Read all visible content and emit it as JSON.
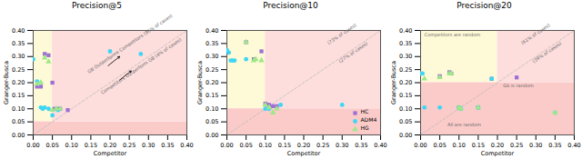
{
  "chart_data": [
    {
      "type": "scatter",
      "title": "Precision@5",
      "xlabel": "Competitor",
      "ylabel": "Granger-Busca",
      "xlim": [
        0.0,
        0.4
      ],
      "ylim": [
        0.0,
        0.4
      ],
      "xticks": [
        {
          "value": 0.0,
          "label": "0.00"
        },
        0.05,
        {
          "value": 0.1,
          "label": "0.10"
        },
        0.15,
        {
          "value": 0.2,
          "label": "0.20"
        },
        0.25,
        {
          "value": 0.3,
          "label": "0.30"
        },
        0.35,
        {
          "value": 0.4,
          "label": "0.40"
        }
      ],
      "yticks": [
        {
          "value": 0.0,
          "label": "0.00"
        },
        0.05,
        {
          "value": 0.1,
          "label": "0.10"
        },
        0.15,
        {
          "value": 0.2,
          "label": "0.20"
        },
        0.25,
        {
          "value": 0.3,
          "label": "0.30"
        },
        0.35,
        {
          "value": 0.4,
          "label": "0.40"
        }
      ],
      "grid": false,
      "threshold": 0.05,
      "region_colors": [
        "#FEF9D6",
        "#FBCBC9",
        "#FDDEDD"
      ],
      "diagonal_annotations": {
        "upper": {
          "text": "GB Outperforms Competitors (96% of cases)",
          "x": 0.145,
          "y": 0.235
        },
        "lower": {
          "text": "Competitors Outperform GB (4% of cases)",
          "x": 0.175,
          "y": 0.165
        }
      },
      "arrows": [
        {
          "x1": 0.195,
          "y1": 0.265,
          "x2": 0.225,
          "y2": 0.3
        },
        {
          "x1": 0.225,
          "y1": 0.21,
          "x2": 0.255,
          "y2": 0.245
        }
      ],
      "series": [
        {
          "name": "HC",
          "color": "#9B6FD4",
          "marker": "square",
          "values": [
            [
              0.01,
              0.185
            ],
            [
              0.02,
              0.185
            ],
            [
              0.03,
              0.31
            ],
            [
              0.04,
              0.305
            ],
            [
              0.05,
              0.2
            ],
            [
              0.055,
              0.1
            ],
            [
              0.065,
              0.1
            ],
            [
              0.07,
              0.1
            ],
            [
              0.09,
              0.095
            ]
          ]
        },
        {
          "name": "ADM4",
          "color": "#3DD6F5",
          "marker": "circle",
          "values": [
            [
              0.0,
              0.29
            ],
            [
              0.01,
              0.205
            ],
            [
              0.02,
              0.105
            ],
            [
              0.025,
              0.1
            ],
            [
              0.03,
              0.105
            ],
            [
              0.04,
              0.1
            ],
            [
              0.05,
              0.075
            ],
            [
              0.065,
              0.095
            ],
            [
              0.2,
              0.32
            ],
            [
              0.28,
              0.31
            ]
          ]
        },
        {
          "name": "HG",
          "color": "#9EE888",
          "marker": "triangle",
          "values": [
            [
              0.01,
              0.195
            ],
            [
              0.02,
              0.2
            ],
            [
              0.03,
              0.295
            ],
            [
              0.04,
              0.28
            ],
            [
              0.05,
              0.095
            ],
            [
              0.06,
              0.1
            ],
            [
              0.07,
              0.1
            ]
          ]
        }
      ]
    },
    {
      "type": "scatter",
      "title": "Precision@10",
      "xlabel": "Competitor",
      "ylabel": "Granger-Busca",
      "xlim": [
        0.0,
        0.4
      ],
      "ylim": [
        0.0,
        0.4
      ],
      "xticks": [
        {
          "value": 0.0,
          "label": "0.00"
        },
        0.05,
        {
          "value": 0.1,
          "label": "0.10"
        },
        0.15,
        {
          "value": 0.2,
          "label": "0.20"
        },
        0.25,
        {
          "value": 0.3,
          "label": "0.30"
        },
        0.35,
        {
          "value": 0.4,
          "label": "0.40"
        }
      ],
      "yticks": [
        {
          "value": 0.0,
          "label": "0.00"
        },
        0.05,
        {
          "value": 0.1,
          "label": "0.10"
        },
        0.15,
        {
          "value": 0.2,
          "label": "0.20"
        },
        0.25,
        {
          "value": 0.3,
          "label": "0.30"
        },
        0.35,
        {
          "value": 0.4,
          "label": "0.40"
        }
      ],
      "grid": false,
      "legend": "lower right",
      "threshold": 0.1,
      "region_colors": [
        "#FEF9D6",
        "#FBCBC9",
        "#FDDEDD"
      ],
      "diagonal_annotations": {
        "upper": {
          "text": "(73% of cases)",
          "x": 0.265,
          "y": 0.345
        },
        "lower": {
          "text": "(27% of cases)",
          "x": 0.29,
          "y": 0.285
        }
      },
      "series": [
        {
          "name": "HC",
          "color": "#9B6FD4",
          "marker": "square",
          "values": [
            [
              0.05,
              0.355
            ],
            [
              0.07,
              0.29
            ],
            [
              0.09,
              0.32
            ],
            [
              0.1,
              0.12
            ],
            [
              0.105,
              0.115
            ],
            [
              0.11,
              0.115
            ],
            [
              0.12,
              0.11
            ],
            [
              0.13,
              0.11
            ]
          ]
        },
        {
          "name": "ADM4",
          "color": "#3DD6F5",
          "marker": "circle",
          "values": [
            [
              0.0,
              0.325
            ],
            [
              0.005,
              0.315
            ],
            [
              0.01,
              0.285
            ],
            [
              0.015,
              0.285
            ],
            [
              0.02,
              0.285
            ],
            [
              0.05,
              0.29
            ],
            [
              0.1,
              0.1
            ],
            [
              0.11,
              0.1
            ],
            [
              0.14,
              0.115
            ],
            [
              0.3,
              0.115
            ]
          ]
        },
        {
          "name": "HG",
          "color": "#9EE888",
          "marker": "triangle",
          "values": [
            [
              0.05,
              0.355
            ],
            [
              0.07,
              0.285
            ],
            [
              0.075,
              0.29
            ],
            [
              0.09,
              0.285
            ],
            [
              0.1,
              0.115
            ],
            [
              0.11,
              0.105
            ],
            [
              0.12,
              0.085
            ],
            [
              0.13,
              0.1
            ]
          ]
        }
      ]
    },
    {
      "type": "scatter",
      "title": "Precision@20",
      "xlabel": "Competitor",
      "ylabel": "Granger-Busca",
      "xlim": [
        0.0,
        0.4
      ],
      "ylim": [
        0.0,
        0.4
      ],
      "xticks": [
        {
          "value": 0.0,
          "label": "0.00"
        },
        0.05,
        {
          "value": 0.1,
          "label": "0.10"
        },
        0.15,
        {
          "value": 0.2,
          "label": "0.20"
        },
        0.25,
        {
          "value": 0.3,
          "label": "0.30"
        },
        0.35,
        {
          "value": 0.4,
          "label": "0.40"
        }
      ],
      "yticks": [
        {
          "value": 0.0,
          "label": "0.00"
        },
        0.05,
        {
          "value": 0.1,
          "label": "0.10"
        },
        0.15,
        {
          "value": 0.2,
          "label": "0.20"
        },
        0.25,
        {
          "value": 0.3,
          "label": "0.30"
        },
        0.35,
        {
          "value": 0.4,
          "label": "0.40"
        }
      ],
      "grid": false,
      "threshold": 0.2,
      "region_colors": [
        "#FEF9D6",
        "#FBCBC9",
        "#FDDEDD"
      ],
      "diagonal_annotations": {
        "upper": {
          "text": "(61% of cases)",
          "x": 0.265,
          "y": 0.345
        },
        "lower": {
          "text": "(39% of cases)",
          "x": 0.29,
          "y": 0.285
        }
      },
      "annotations": [
        {
          "text": "Competitors are random",
          "x": 0.01,
          "y": 0.39
        },
        {
          "text": "Gb is random",
          "x": 0.215,
          "y": 0.195
        },
        {
          "text": "All are random",
          "x": 0.07,
          "y": 0.045
        }
      ],
      "series": [
        {
          "name": "HC",
          "color": "#9B6FD4",
          "marker": "square",
          "values": [
            [
              0.05,
              0.225
            ],
            [
              0.075,
              0.24
            ],
            [
              0.08,
              0.235
            ],
            [
              0.1,
              0.105
            ],
            [
              0.15,
              0.105
            ],
            [
              0.185,
              0.215
            ],
            [
              0.25,
              0.22
            ]
          ]
        },
        {
          "name": "ADM4",
          "color": "#3DD6F5",
          "marker": "circle",
          "values": [
            [
              0.0,
              0.235
            ],
            [
              0.005,
              0.235
            ],
            [
              0.01,
              0.105
            ],
            [
              0.05,
              0.105
            ],
            [
              0.1,
              0.105
            ],
            [
              0.105,
              0.1
            ],
            [
              0.15,
              0.105
            ],
            [
              0.185,
              0.215
            ],
            [
              0.35,
              0.085
            ]
          ]
        },
        {
          "name": "HG",
          "color": "#9EE888",
          "marker": "triangle",
          "values": [
            [
              0.01,
              0.215
            ],
            [
              0.05,
              0.22
            ],
            [
              0.075,
              0.235
            ],
            [
              0.08,
              0.235
            ],
            [
              0.1,
              0.105
            ],
            [
              0.105,
              0.1
            ],
            [
              0.15,
              0.105
            ],
            [
              0.35,
              0.085
            ]
          ]
        }
      ]
    }
  ]
}
